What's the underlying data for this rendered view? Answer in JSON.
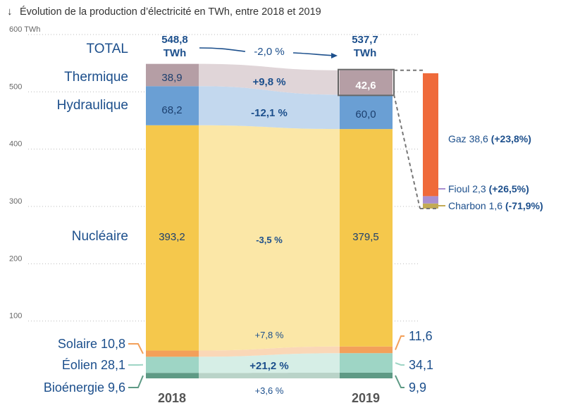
{
  "chart_data": {
    "type": "bar",
    "title": "Évolution de la production d’électricité en TWh, entre 2018 et 2019",
    "y_unit_label": "600 TWh",
    "ylim": [
      0,
      600
    ],
    "yticks": [
      {
        "value": 100,
        "label": "100"
      },
      {
        "value": 200,
        "label": "200"
      },
      {
        "value": 300,
        "label": "300"
      },
      {
        "value": 400,
        "label": "400"
      },
      {
        "value": 500,
        "label": "500"
      },
      {
        "value": 600,
        "label": "600 TWh"
      }
    ],
    "categories": [
      "2018",
      "2019"
    ],
    "series": [
      {
        "name": "Bioénergie",
        "values": [
          9.6,
          9.9
        ],
        "change": "+3,6 %",
        "label_2018": "Bioénergie 9,6",
        "label_2019": "9,9",
        "color": "#5e9a85",
        "band_color": "#b9d3c8"
      },
      {
        "name": "Éolien",
        "values": [
          28.1,
          34.1
        ],
        "change": "+21,2 %",
        "label_2018": "Éolien 28,1",
        "label_2019": "34,1",
        "color": "#9ed5c5",
        "band_color": "#d6eee6"
      },
      {
        "name": "Solaire",
        "values": [
          10.8,
          11.6
        ],
        "change": "+7,8 %",
        "label_2018": "Solaire 10,8",
        "label_2019": "11,6",
        "color": "#f3a05a",
        "band_color": "#fad7b7"
      },
      {
        "name": "Nucléaire",
        "values": [
          393.2,
          379.5
        ],
        "change": "-3,5 %",
        "label_2018": "393,2",
        "label_2019": "379,5",
        "color": "#f5c84c",
        "band_color": "#fbe7a7"
      },
      {
        "name": "Hydraulique",
        "values": [
          68.2,
          60.0
        ],
        "change": "-12,1 %",
        "label_2018": "68,2",
        "label_2019": "60,0",
        "color": "#6a9fd4",
        "band_color": "#c3d8ee"
      },
      {
        "name": "Thermique",
        "values": [
          38.9,
          42.6
        ],
        "change": "+9,8 %",
        "label_2018": "38,9",
        "label_2019": "42,6",
        "color": "#b59ea5",
        "band_color": "#e0d5d8"
      }
    ],
    "total": {
      "label": "TOTAL",
      "values": [
        548.8,
        537.7
      ],
      "value_labels": [
        "548,8",
        "537,7"
      ],
      "unit": "TWh",
      "change": "-2,0 %"
    },
    "thermique_breakdown_2019": [
      {
        "name": "Charbon",
        "value": 1.6,
        "label": "Charbon 1,6",
        "change": "(-71,9%)",
        "color": "#c2aa55"
      },
      {
        "name": "Fioul",
        "value": 2.3,
        "label": "Fioul 2,3",
        "change": "(+26,5%)",
        "color": "#a98fd0"
      },
      {
        "name": "Gaz",
        "value": 38.6,
        "label": "Gaz 38,6",
        "change": "(+23,8%)",
        "color": "#ef6a3a"
      }
    ]
  }
}
